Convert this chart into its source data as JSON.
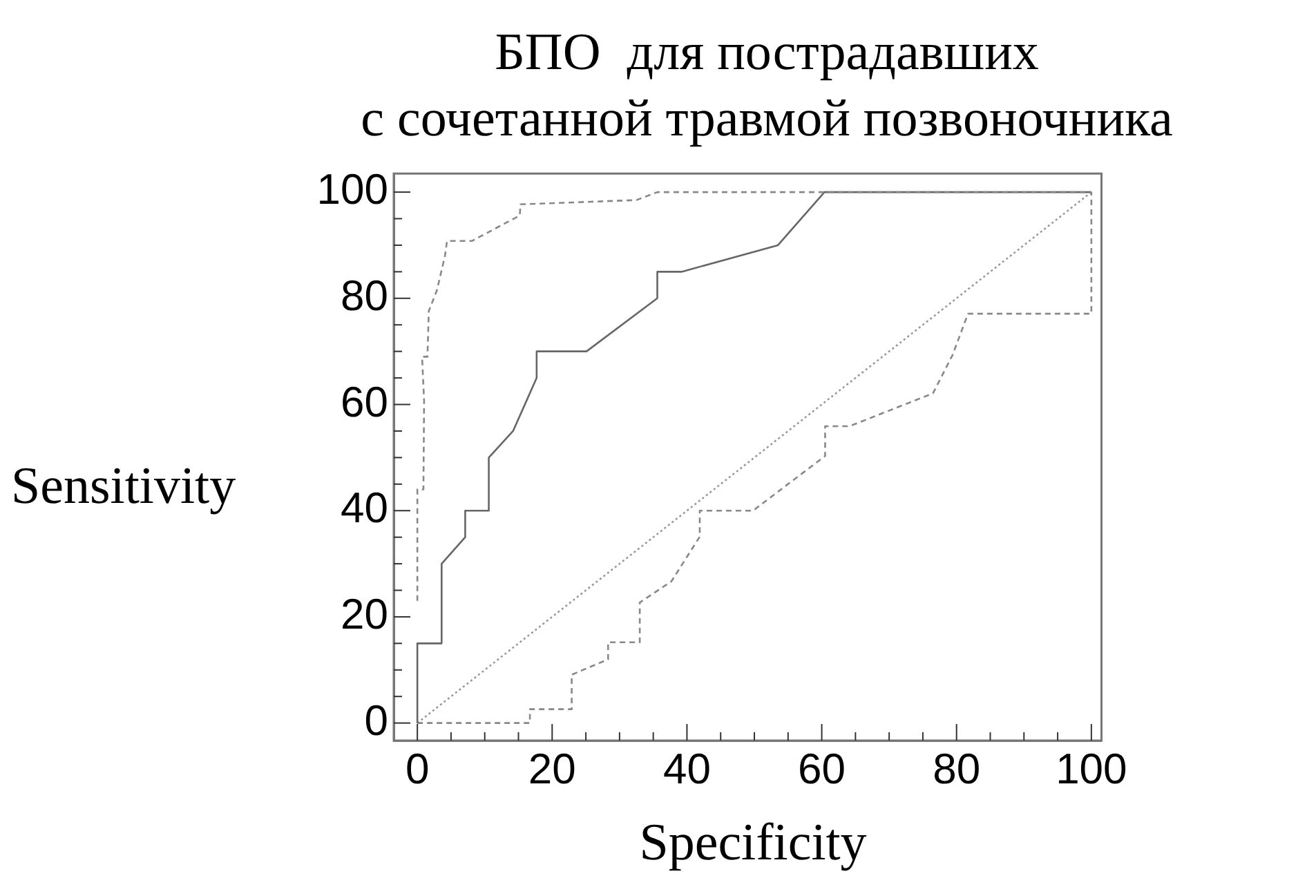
{
  "chart_data": {
    "type": "line",
    "title": "БПО  для пострадавших\nс сочетанной травмой позвоночника",
    "xlabel": "Specificity",
    "ylabel": "Sensitivity",
    "xlim": [
      -3.5,
      101.5
    ],
    "ylim": [
      -3.3,
      103.5
    ],
    "xticks": [
      0,
      {
        "value": 5,
        "label": null
      },
      {
        "value": 10,
        "label": null
      },
      {
        "value": 15,
        "label": null
      },
      20,
      {
        "value": 25,
        "label": null
      },
      {
        "value": 30,
        "label": null
      },
      {
        "value": 35,
        "label": null
      },
      40,
      {
        "value": 45,
        "label": null
      },
      {
        "value": 50,
        "label": null
      },
      {
        "value": 55,
        "label": null
      },
      60,
      {
        "value": 65,
        "label": null
      },
      {
        "value": 70,
        "label": null
      },
      {
        "value": 75,
        "label": null
      },
      80,
      {
        "value": 85,
        "label": null
      },
      {
        "value": 90,
        "label": null
      },
      {
        "value": 95,
        "label": null
      },
      100
    ],
    "yticks": [
      0,
      {
        "value": 5,
        "label": null
      },
      {
        "value": 10,
        "label": null
      },
      {
        "value": 15,
        "label": null
      },
      20,
      {
        "value": 25,
        "label": null
      },
      {
        "value": 30,
        "label": null
      },
      {
        "value": 35,
        "label": null
      },
      40,
      {
        "value": 45,
        "label": null
      },
      {
        "value": 50,
        "label": null
      },
      {
        "value": 55,
        "label": null
      },
      60,
      {
        "value": 65,
        "label": null
      },
      {
        "value": 70,
        "label": null
      },
      {
        "value": 75,
        "label": null
      },
      80,
      {
        "value": 85,
        "label": null
      },
      {
        "value": 90,
        "label": null
      },
      {
        "value": 95,
        "label": null
      },
      100
    ],
    "grid": false,
    "legend": false,
    "marker": "none",
    "series": [
      {
        "color": "#888888",
        "line_style": "dashed",
        "x": [
          0,
          0,
          0.9,
          1,
          0.7,
          1.5,
          1.7,
          2.9,
          4.1,
          4.4,
          8.1,
          15.2,
          15.3,
          32.5,
          35.6,
          100
        ],
        "values": [
          23,
          44,
          44,
          60.7,
          69,
          69,
          77.6,
          81.5,
          88,
          90.8,
          90.8,
          95.6,
          97.7,
          98.5,
          100,
          100
        ]
      },
      {
        "color": "#666666",
        "line_style": "solid",
        "x": [
          0,
          0,
          3.6,
          3.6,
          7.1,
          7.1,
          10.6,
          10.6,
          14.2,
          17.7,
          17.7,
          25.1,
          35.6,
          35.6,
          39.2,
          53.5,
          60.4,
          100
        ],
        "values": [
          0,
          15,
          15,
          30,
          35,
          40,
          40,
          50,
          55,
          65,
          70,
          70,
          80,
          85,
          85,
          90,
          100,
          100
        ]
      },
      {
        "color": "#888888",
        "line_style": "dashed",
        "x": [
          0,
          16.7,
          16.7,
          22.9,
          22.9,
          28.3,
          28.3,
          33,
          33,
          37.7,
          41.9,
          41.9,
          49.8,
          60.5,
          60.5,
          64.1,
          76.5,
          79.4,
          81.7,
          100,
          100
        ],
        "values": [
          0,
          0,
          2.6,
          2.6,
          9.1,
          12,
          15.2,
          15.2,
          22.7,
          26.7,
          35.1,
          40,
          40,
          50.3,
          55.9,
          55.9,
          62.1,
          69.3,
          77.1,
          77.1,
          100
        ]
      },
      {
        "color": "#999999",
        "line_style": "dotted",
        "x": [
          0,
          100
        ],
        "values": [
          0,
          100
        ]
      }
    ]
  }
}
